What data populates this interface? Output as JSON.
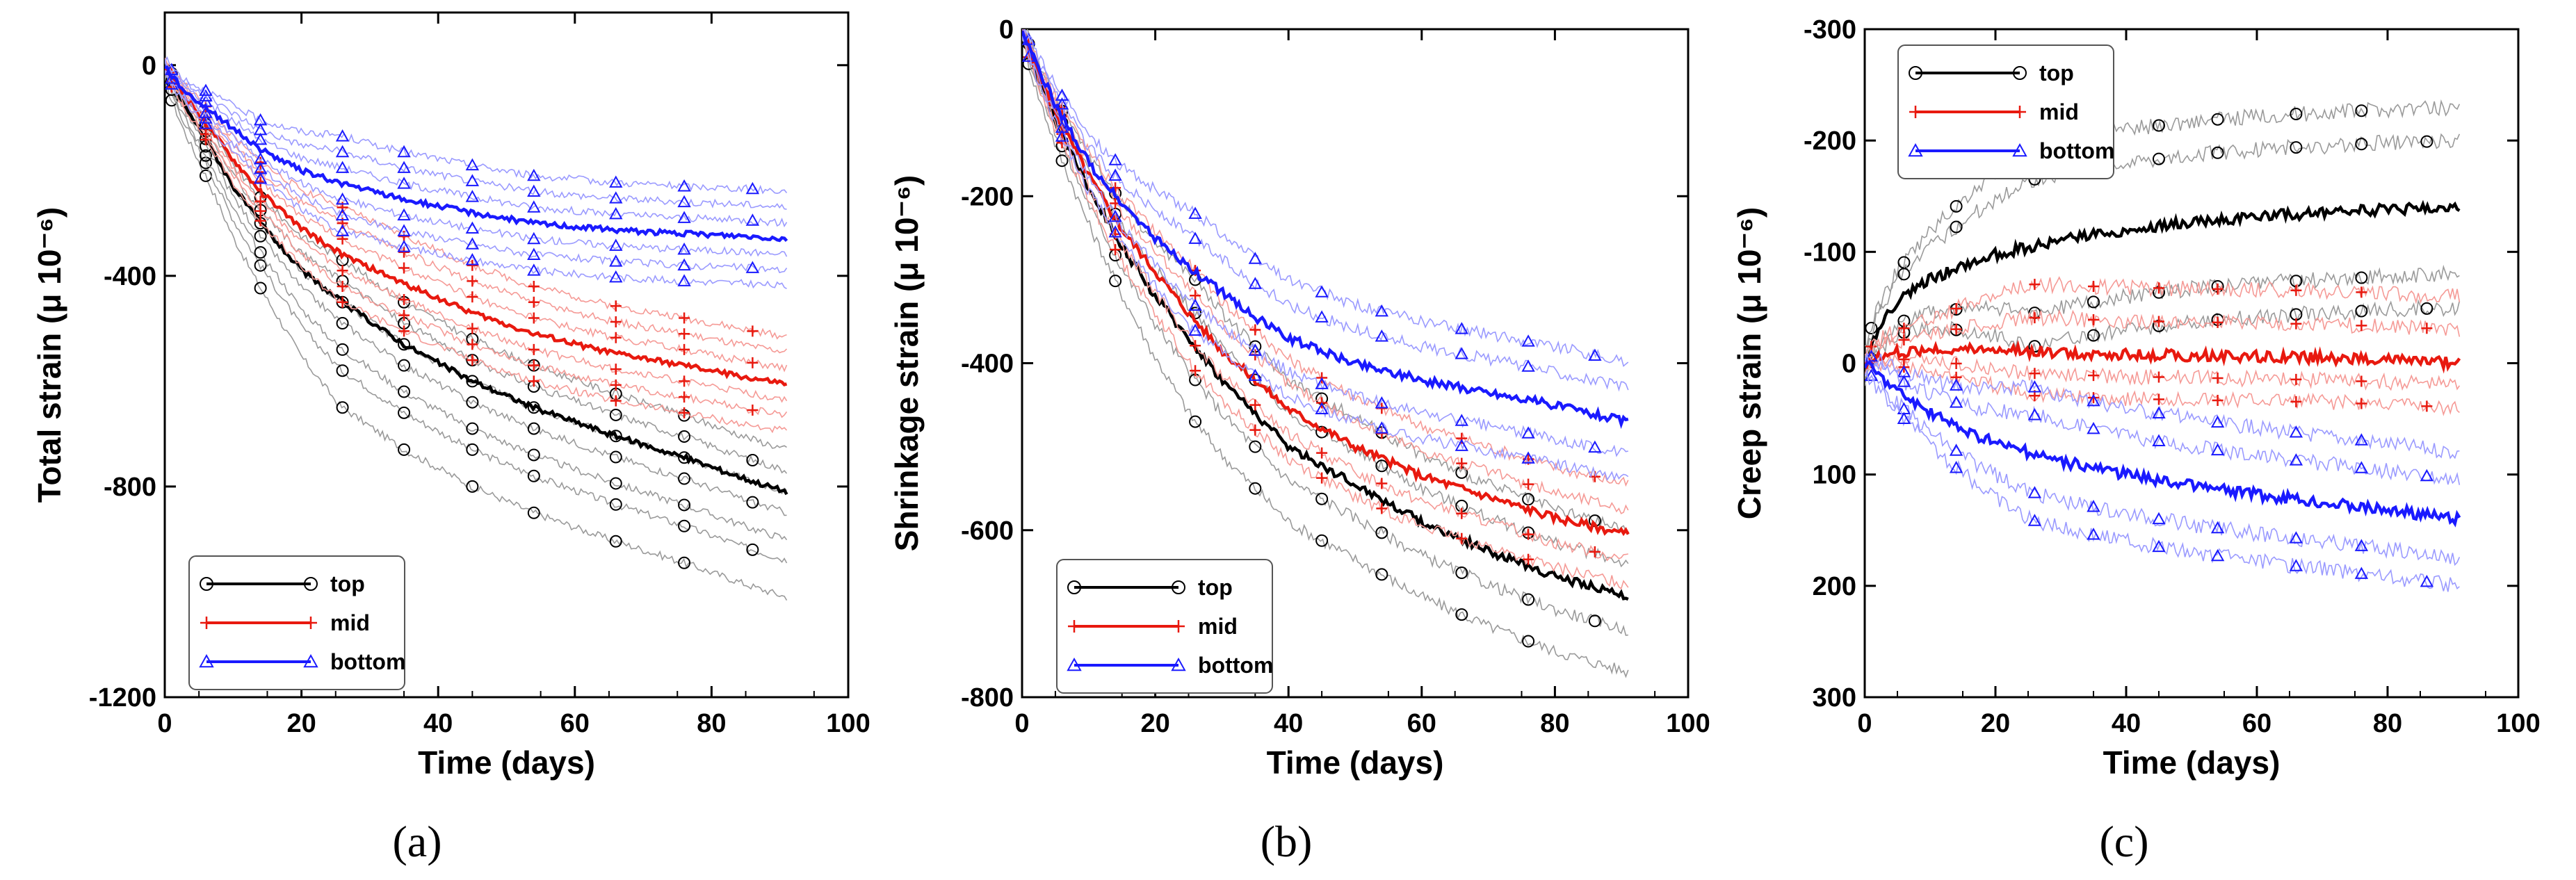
{
  "chart_data": [
    {
      "type": "line",
      "panel_label": "(a)",
      "xlabel": "Time (days)",
      "ylabel": "Total strain (μ 10⁻⁶)",
      "xlim": [
        0,
        100
      ],
      "ylim": [
        -1200,
        100
      ],
      "y_inverted": false,
      "xticks": [
        0,
        20,
        40,
        60,
        80,
        100
      ],
      "yticks": [
        0,
        -400,
        -800,
        -1200
      ],
      "legend": {
        "position": "bottom-left",
        "entries": [
          "top",
          "mid",
          "bottom"
        ]
      },
      "series": [
        {
          "name": "top",
          "color": "#000000",
          "marker": "circle",
          "x": [
            0,
            1,
            3,
            6,
            10,
            14,
            20,
            26,
            35,
            45,
            54,
            65,
            76,
            86,
            91
          ],
          "values": [
            0,
            -30,
            -80,
            -140,
            -230,
            -300,
            -390,
            -450,
            -530,
            -600,
            -650,
            -700,
            -745,
            -790,
            -810
          ],
          "band": [
            -200,
            -130,
            -90,
            -40,
            0,
            40,
            80
          ]
        },
        {
          "name": "mid",
          "color": "#e8190f",
          "marker": "plus",
          "x": [
            0,
            1,
            3,
            6,
            10,
            14,
            20,
            26,
            35,
            45,
            54,
            65,
            76,
            86,
            91
          ],
          "values": [
            0,
            -25,
            -60,
            -110,
            -180,
            -240,
            -310,
            -360,
            -415,
            -470,
            -510,
            -545,
            -570,
            -595,
            -605
          ],
          "band": [
            -90,
            -60,
            -30,
            30,
            60,
            90
          ]
        },
        {
          "name": "bottom",
          "color": "#1a1aff",
          "marker": "triangle",
          "x": [
            0,
            1,
            3,
            6,
            10,
            14,
            20,
            26,
            35,
            45,
            54,
            65,
            76,
            86,
            91
          ],
          "values": [
            0,
            -20,
            -50,
            -80,
            -120,
            -160,
            -200,
            -225,
            -255,
            -280,
            -300,
            -312,
            -320,
            -325,
            -330
          ],
          "band": [
            -90,
            -60,
            -30,
            30,
            60,
            90
          ]
        }
      ]
    },
    {
      "type": "line",
      "panel_label": "(b)",
      "xlabel": "Time (days)",
      "ylabel": "Shrinkage strain (μ 10⁻⁶)",
      "xlim": [
        0,
        100
      ],
      "ylim": [
        -800,
        0
      ],
      "y_inverted": false,
      "xticks": [
        0,
        20,
        40,
        60,
        80,
        100
      ],
      "yticks": [
        0,
        -200,
        -400,
        -600,
        -800
      ],
      "legend": {
        "position": "bottom-left",
        "entries": [
          "top",
          "mid",
          "bottom"
        ]
      },
      "series": [
        {
          "name": "top",
          "color": "#000000",
          "marker": "circle",
          "x": [
            0,
            2,
            5,
            10,
            15,
            20,
            25,
            30,
            35,
            40,
            50,
            60,
            70,
            80,
            91
          ],
          "values": [
            0,
            -50,
            -110,
            -190,
            -260,
            -320,
            -370,
            -420,
            -460,
            -500,
            -545,
            -590,
            -625,
            -655,
            -680
          ],
          "band": [
            -90,
            -40,
            40,
            80
          ]
        },
        {
          "name": "mid",
          "color": "#e8190f",
          "marker": "plus",
          "x": [
            0,
            2,
            5,
            10,
            15,
            20,
            25,
            30,
            35,
            40,
            50,
            60,
            70,
            80,
            91
          ],
          "values": [
            0,
            -45,
            -100,
            -175,
            -240,
            -290,
            -340,
            -385,
            -420,
            -455,
            -500,
            -535,
            -560,
            -585,
            -605
          ],
          "band": [
            -60,
            -30,
            30,
            60
          ]
        },
        {
          "name": "bottom",
          "color": "#1a1aff",
          "marker": "triangle",
          "x": [
            0,
            2,
            5,
            10,
            15,
            20,
            25,
            30,
            35,
            40,
            50,
            60,
            70,
            80,
            91
          ],
          "values": [
            0,
            -40,
            -90,
            -160,
            -210,
            -250,
            -285,
            -315,
            -345,
            -370,
            -400,
            -420,
            -435,
            -450,
            -470
          ],
          "band": [
            -70,
            -40,
            40,
            70
          ]
        }
      ]
    },
    {
      "type": "line",
      "panel_label": "(c)",
      "xlabel": "Time (days)",
      "ylabel": "Creep strain (μ 10⁻⁶)",
      "xlim": [
        0,
        100
      ],
      "ylim": [
        300,
        -300
      ],
      "y_inverted": true,
      "xticks": [
        0,
        20,
        40,
        60,
        80,
        100
      ],
      "yticks": [
        -300,
        -200,
        -100,
        0,
        100,
        200,
        300
      ],
      "legend": {
        "position": "top-left",
        "entries": [
          "top",
          "mid",
          "bottom"
        ]
      },
      "series": [
        {
          "name": "top",
          "color": "#000000",
          "marker": "circle",
          "x": [
            0,
            2,
            5,
            10,
            15,
            20,
            30,
            40,
            50,
            60,
            70,
            80,
            91
          ],
          "values": [
            0,
            -30,
            -55,
            -75,
            -88,
            -98,
            -110,
            -120,
            -127,
            -132,
            -135,
            -138,
            -140
          ],
          "band": [
            -90,
            -60,
            60,
            90
          ]
        },
        {
          "name": "mid",
          "color": "#e8190f",
          "marker": "plus",
          "x": [
            0,
            2,
            5,
            10,
            15,
            20,
            30,
            40,
            50,
            60,
            70,
            80,
            91
          ],
          "values": [
            0,
            -8,
            -10,
            -12,
            -12,
            -12,
            -10,
            -8,
            -7,
            -6,
            -5,
            -3,
            0
          ],
          "band": [
            -60,
            -30,
            20,
            40
          ]
        },
        {
          "name": "bottom",
          "color": "#1a1aff",
          "marker": "triangle",
          "x": [
            0,
            2,
            5,
            10,
            15,
            20,
            30,
            40,
            50,
            60,
            70,
            80,
            91
          ],
          "values": [
            0,
            10,
            25,
            45,
            60,
            72,
            88,
            100,
            110,
            118,
            125,
            132,
            140
          ],
          "band": [
            -60,
            -35,
            35,
            60
          ]
        }
      ]
    }
  ]
}
